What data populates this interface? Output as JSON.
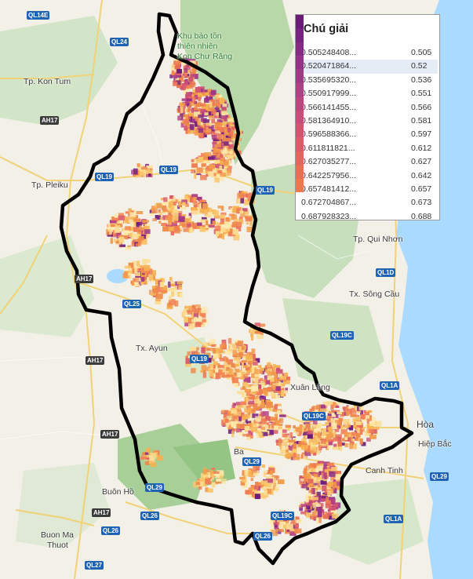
{
  "legend": {
    "title": "Chú giải",
    "entries": [
      {
        "label": "0.505248408...",
        "value": "0.505",
        "color": "#6a1b78"
      },
      {
        "label": "0.520471864...",
        "value": "0.52",
        "color": "#782382"
      },
      {
        "label": "0.535695320...",
        "value": "0.536",
        "color": "#862a86"
      },
      {
        "label": "0.550917999...",
        "value": "0.551",
        "color": "#963188"
      },
      {
        "label": "0.566141455...",
        "value": "0.566",
        "color": "#a33887"
      },
      {
        "label": "0.581364910...",
        "value": "0.581",
        "color": "#b13f85"
      },
      {
        "label": "0.596588366...",
        "value": "0.597",
        "color": "#be4680"
      },
      {
        "label": "0.611811821...",
        "value": "0.612",
        "color": "#c94c79"
      },
      {
        "label": "0.627035277...",
        "value": "0.627",
        "color": "#d45371"
      },
      {
        "label": "0.642257956...",
        "value": "0.642",
        "color": "#dd5b68"
      },
      {
        "label": "0.657481412...",
        "value": "0.657",
        "color": "#e4645f"
      },
      {
        "label": "0.672704867...",
        "value": "0.673",
        "color": "#ea6d55"
      },
      {
        "label": "0.687928323...",
        "value": "0.688",
        "color": "#ee784d"
      }
    ]
  },
  "places": {
    "kon_tum": "Tp. Kon Tum",
    "pleiku": "Tp. Pleiku",
    "qui_nhon": "Tp. Qui Nhơn",
    "song_cau": "Tx. Sông Cầu",
    "ayun": "Tx. Ayun",
    "xuan_lang": "Xuân Lãng",
    "hoa": "Hòa",
    "hiep_bac": "Hiệp Bắc",
    "canh_tinh": "Canh Tinh",
    "buon_ho": "Buôn Hồ",
    "buon_ma_thuot_1": "Buon Ma",
    "buon_ma_thuot_2": "Thuot",
    "ba_to": "Ba",
    "park_1": "Khu bảo tồn",
    "park_2": "thiên nhiên",
    "park_3": "Kon Chư Răng"
  },
  "roads": {
    "ql14e": "QL14E",
    "ql24": "QL24",
    "ah17": "AH17",
    "ql19": "QL19",
    "ql19b": "QL19",
    "ql19c": "QL19C",
    "ql1d": "QL1D",
    "ql25": "QL25",
    "ql29": "QL29",
    "ql29b": "QL29",
    "ql19c2": "QL19C",
    "ql1a": "QL1A",
    "ql1a2": "QL1A",
    "ql26": "QL26",
    "ql26b": "QL26",
    "ql27": "QL27",
    "ql19e": "QL19",
    "ql29c": "QL29"
  },
  "colors": {
    "sea": "#aadaff",
    "land": "#f3f0e8",
    "forest": "#c8dfbd",
    "dense_forest": "#9fcb8f",
    "boundary": "#000000",
    "low_index": "#f6b04f",
    "high_index": "#ffe9a3"
  }
}
